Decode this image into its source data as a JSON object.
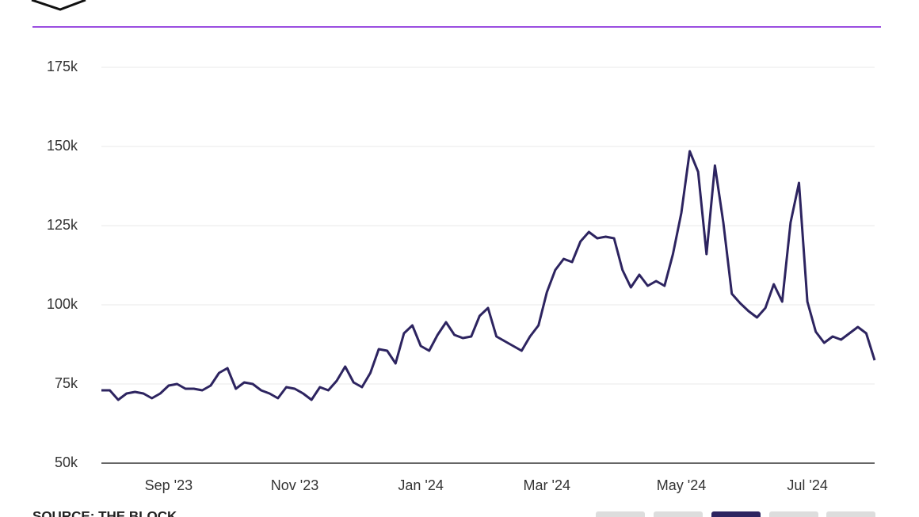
{
  "chart_data": {
    "type": "line",
    "categories": [
      null,
      null,
      null,
      null,
      null,
      null,
      null,
      null,
      "Sep '23",
      null,
      null,
      null,
      null,
      null,
      null,
      null,
      null,
      null,
      null,
      null,
      null,
      null,
      null,
      "Nov '23",
      null,
      null,
      null,
      null,
      null,
      null,
      null,
      null,
      null,
      null,
      null,
      null,
      null,
      null,
      "Jan '24",
      null,
      null,
      null,
      null,
      null,
      null,
      null,
      null,
      null,
      null,
      null,
      null,
      null,
      null,
      "Mar '24",
      null,
      null,
      null,
      null,
      null,
      null,
      null,
      null,
      null,
      null,
      null,
      null,
      null,
      null,
      null,
      "May '24",
      null,
      null,
      null,
      null,
      null,
      null,
      null,
      null,
      null,
      null,
      null,
      null,
      null,
      null,
      "Jul '24",
      null,
      null,
      null,
      null,
      null,
      null,
      null,
      null
    ],
    "values": [
      73000,
      73000,
      70000,
      72000,
      72500,
      72000,
      70500,
      72000,
      74500,
      75000,
      73500,
      73500,
      73000,
      74500,
      78500,
      80000,
      73500,
      75500,
      75000,
      73000,
      72000,
      70500,
      74000,
      73500,
      72000,
      70000,
      74000,
      73000,
      76000,
      80500,
      75500,
      74000,
      78500,
      86000,
      85500,
      81500,
      91000,
      93500,
      87000,
      85500,
      90500,
      94500,
      90500,
      89500,
      90000,
      96500,
      99000,
      90000,
      88500,
      87000,
      85500,
      90000,
      93500,
      104000,
      111000,
      114500,
      113500,
      120000,
      123000,
      121000,
      121500,
      121000,
      111000,
      105500,
      109500,
      106000,
      107500,
      106000,
      116000,
      129000,
      148500,
      142000,
      116000,
      144000,
      126000,
      103500,
      100500,
      98000,
      96000,
      99000,
      106500,
      101000,
      126000,
      138500,
      101000,
      91500,
      88000,
      90000,
      89000,
      91000,
      93000,
      91000,
      82500
    ],
    "color": "#2d2460",
    "ylim": [
      50000,
      175000
    ],
    "yticks": [
      {
        "value": 50000,
        "label": "50k"
      },
      {
        "value": 75000,
        "label": "75k"
      },
      {
        "value": 100000,
        "label": "100k"
      },
      {
        "value": 125000,
        "label": "125k"
      },
      {
        "value": 150000,
        "label": "150k"
      },
      {
        "value": 175000,
        "label": "175k"
      }
    ],
    "grid": true,
    "source": "SOURCE: THE BLOCK"
  }
}
